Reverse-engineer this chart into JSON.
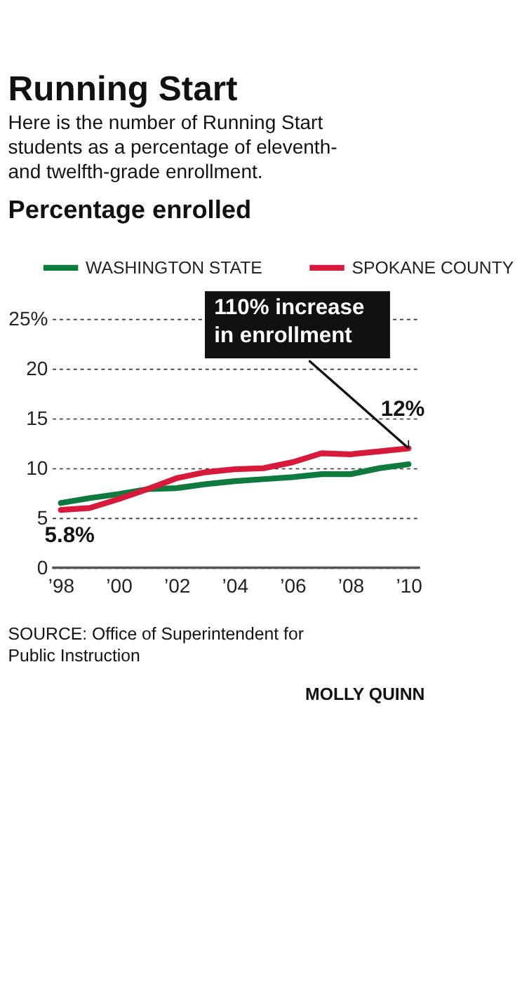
{
  "chart_data": {
    "type": "line",
    "title": "Running Start",
    "subtitle": "Here is the number of Running Start students as a percentage of eleventh- and twelfth-grade enrollment.",
    "ylabel": "Percentage enrolled",
    "x": [
      1998,
      1999,
      2000,
      2001,
      2002,
      2003,
      2004,
      2005,
      2006,
      2007,
      2008,
      2009,
      2010
    ],
    "series": [
      {
        "name": "WASHINGTON STATE",
        "color": "#0e7a3e",
        "values": [
          6.5,
          7.0,
          7.4,
          7.9,
          8.0,
          8.4,
          8.7,
          8.9,
          9.1,
          9.4,
          9.4,
          10.0,
          10.4
        ]
      },
      {
        "name": "SPOKANE COUNTY",
        "color": "#d71a3c",
        "values": [
          5.8,
          6.0,
          6.9,
          7.9,
          9.0,
          9.6,
          9.9,
          10.0,
          10.6,
          11.5,
          11.4,
          11.7,
          12.0
        ],
        "value_labels": [
          "5.8%",
          null,
          null,
          null,
          null,
          null,
          null,
          null,
          null,
          null,
          null,
          null,
          "12%"
        ]
      }
    ],
    "xlim": [
      1997.7,
      2010.4
    ],
    "ylim": [
      0,
      25
    ],
    "xticks": [
      {
        "value": 1998,
        "label": "’98"
      },
      {
        "value": 2000,
        "label": "’00"
      },
      {
        "value": 2002,
        "label": "’02"
      },
      {
        "value": 2004,
        "label": "’04"
      },
      {
        "value": 2006,
        "label": "’06"
      },
      {
        "value": 2008,
        "label": "’08"
      },
      {
        "value": 2010,
        "label": "’10"
      }
    ],
    "yticks": [
      0,
      5,
      10,
      15,
      20,
      {
        "value": 25,
        "label": "25%"
      }
    ],
    "grid": "y",
    "legend": "top",
    "marker": "none",
    "line_style": "solid",
    "annotations": [
      {
        "text": "110% increase in enrollment",
        "x": 2010,
        "y": 12
      },
      "SOURCE: Office of Superintendent for Public Instruction",
      "MOLLY QUINN"
    ]
  }
}
